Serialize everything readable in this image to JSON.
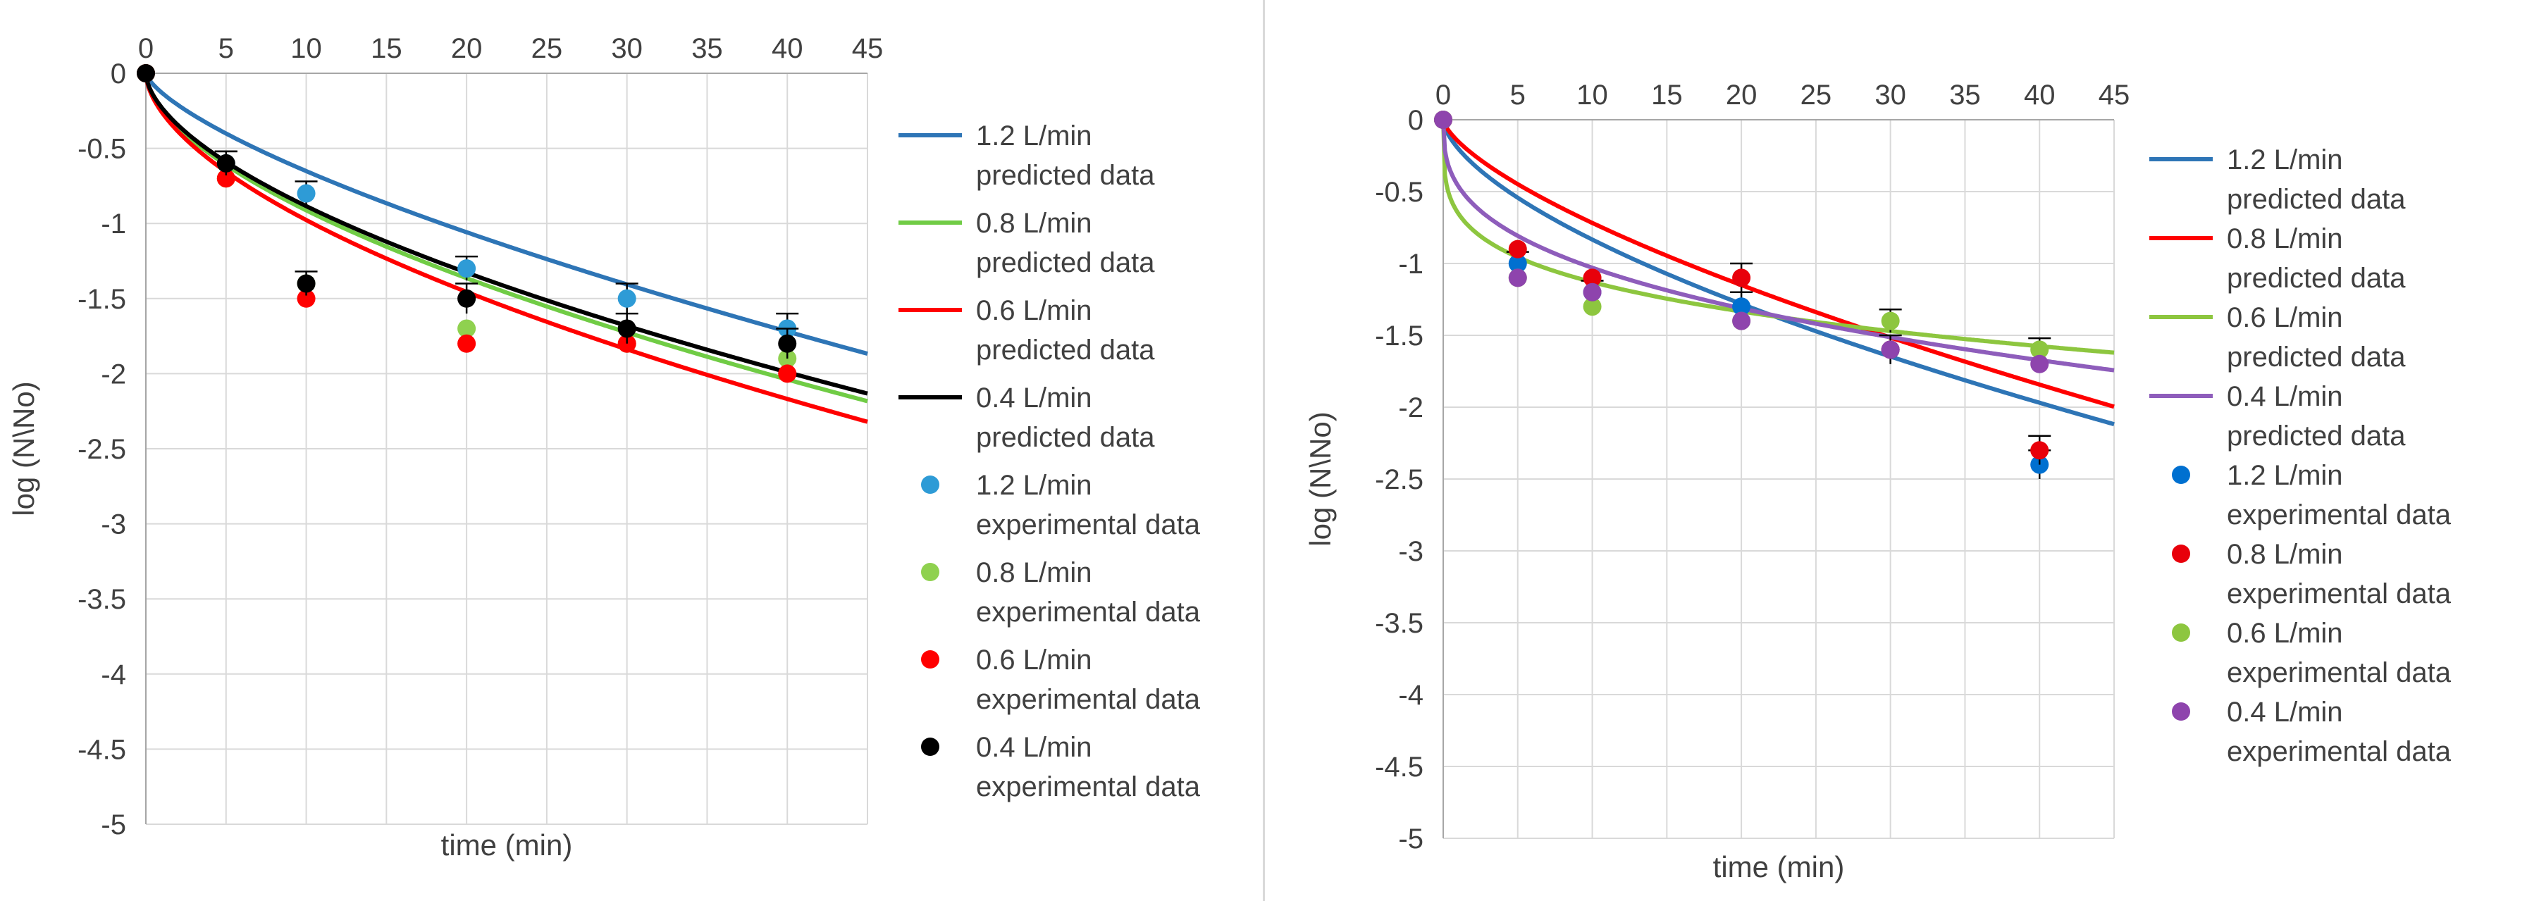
{
  "chart_data": [
    {
      "type": "scatter",
      "xlabel": "time (min)",
      "ylabel": "log (N\\No)",
      "xlim": [
        0,
        45
      ],
      "ylim": [
        -5,
        0
      ],
      "xticks": [
        0,
        5,
        10,
        15,
        20,
        25,
        30,
        35,
        40,
        45
      ],
      "yticks": [
        0,
        -0.5,
        -1,
        -1.5,
        -2,
        -2.5,
        -3,
        -3.5,
        -4,
        -4.5,
        -5
      ],
      "x_axis_position": "top",
      "grid": true,
      "legend_position": "right",
      "lines": [
        {
          "name": "1.2 L/min",
          "sub": "predicted data",
          "color": "#2E75B6",
          "a": 0.13,
          "b": 0.7
        },
        {
          "name": "0.8 L/min",
          "sub": "predicted data",
          "color": "#70CC45",
          "a": 0.24,
          "b": 0.58
        },
        {
          "name": "0.6 L/min",
          "sub": "predicted data",
          "color": "#FF0000",
          "a": 0.26,
          "b": 0.575
        },
        {
          "name": "0.4 L/min",
          "sub": "predicted data",
          "color": "#000000",
          "a": 0.23,
          "b": 0.585
        }
      ],
      "series": [
        {
          "name": "1.2 L/min",
          "sub": "experimental data",
          "color": "#2E9BD6",
          "x": [
            0,
            5,
            10,
            20,
            30,
            40
          ],
          "y": [
            0,
            -0.6,
            -0.8,
            -1.3,
            -1.5,
            -1.7
          ],
          "err": [
            0,
            0.08,
            0.08,
            0.08,
            0.1,
            0.1
          ]
        },
        {
          "name": "0.8 L/min",
          "sub": "experimental data",
          "color": "#8FD14F",
          "x": [
            0,
            5,
            10,
            20,
            30,
            40
          ],
          "y": [
            0,
            -0.7,
            -1.4,
            -1.7,
            -1.8,
            -1.9
          ],
          "err": [
            0,
            0,
            0,
            0,
            0,
            0
          ]
        },
        {
          "name": "0.6 L/min",
          "sub": "experimental data",
          "color": "#FF0000",
          "x": [
            0,
            5,
            10,
            20,
            30,
            40
          ],
          "y": [
            0,
            -0.7,
            -1.5,
            -1.8,
            -1.8,
            -2.0
          ],
          "err": [
            0,
            0,
            0,
            0,
            0,
            0
          ]
        },
        {
          "name": "0.4 L/min",
          "sub": "experimental data",
          "color": "#000000",
          "x": [
            0,
            5,
            10,
            20,
            30,
            40
          ],
          "y": [
            0,
            -0.6,
            -1.4,
            -1.5,
            -1.7,
            -1.8
          ],
          "err": [
            0,
            0.08,
            0.08,
            0.1,
            0.1,
            0.1
          ]
        }
      ]
    },
    {
      "type": "scatter",
      "xlabel": "time (min)",
      "ylabel": "log (N\\No)",
      "xlim": [
        0,
        45
      ],
      "ylim": [
        -5,
        0
      ],
      "xticks": [
        0,
        5,
        10,
        15,
        20,
        25,
        30,
        35,
        40,
        45
      ],
      "yticks": [
        0,
        -0.5,
        -1,
        -1.5,
        -2,
        -2.5,
        -3,
        -3.5,
        -4,
        -4.5,
        -5
      ],
      "x_axis_position": "top",
      "grid": true,
      "legend_position": "right",
      "lines": [
        {
          "name": "1.2 L/min",
          "sub": "predicted data",
          "color": "#2E75B6",
          "a": 0.2,
          "b": 0.62
        },
        {
          "name": "0.8 L/min",
          "sub": "predicted data",
          "color": "#FF0000",
          "a": 0.15,
          "b": 0.68
        },
        {
          "name": "0.6 L/min",
          "sub": "predicted data",
          "color": "#8DC63F",
          "a": 0.65,
          "b": 0.24
        },
        {
          "name": "0.4 L/min",
          "sub": "predicted data",
          "color": "#8E5DBB",
          "a": 0.46,
          "b": 0.35
        }
      ],
      "series": [
        {
          "name": "1.2 L/min",
          "sub": "experimental data",
          "color": "#0070D0",
          "x": [
            0,
            5,
            10,
            20,
            30,
            40
          ],
          "y": [
            0,
            -1.0,
            -1.2,
            -1.3,
            -1.6,
            -2.4
          ],
          "err": [
            0,
            0.08,
            0.08,
            0.1,
            0.1,
            0.1
          ]
        },
        {
          "name": "0.8 L/min",
          "sub": "experimental data",
          "color": "#E8000B",
          "x": [
            0,
            5,
            10,
            20,
            30,
            40
          ],
          "y": [
            0,
            -0.9,
            -1.1,
            -1.1,
            -1.6,
            -2.3
          ],
          "err": [
            0,
            0,
            0,
            0.1,
            0,
            0.1
          ]
        },
        {
          "name": "0.6 L/min",
          "sub": "experimental data",
          "color": "#8DC63F",
          "x": [
            0,
            5,
            10,
            20,
            30,
            40
          ],
          "y": [
            0,
            -1.1,
            -1.3,
            -1.4,
            -1.4,
            -1.6
          ],
          "err": [
            0,
            0,
            0,
            0,
            0.08,
            0.08
          ]
        },
        {
          "name": "0.4 L/min",
          "sub": "experimental data",
          "color": "#8E44AD",
          "x": [
            0,
            5,
            10,
            20,
            30,
            40
          ],
          "y": [
            0,
            -1.1,
            -1.2,
            -1.4,
            -1.6,
            -1.7
          ],
          "err": [
            0,
            0,
            0,
            0,
            0,
            0
          ]
        }
      ]
    }
  ]
}
